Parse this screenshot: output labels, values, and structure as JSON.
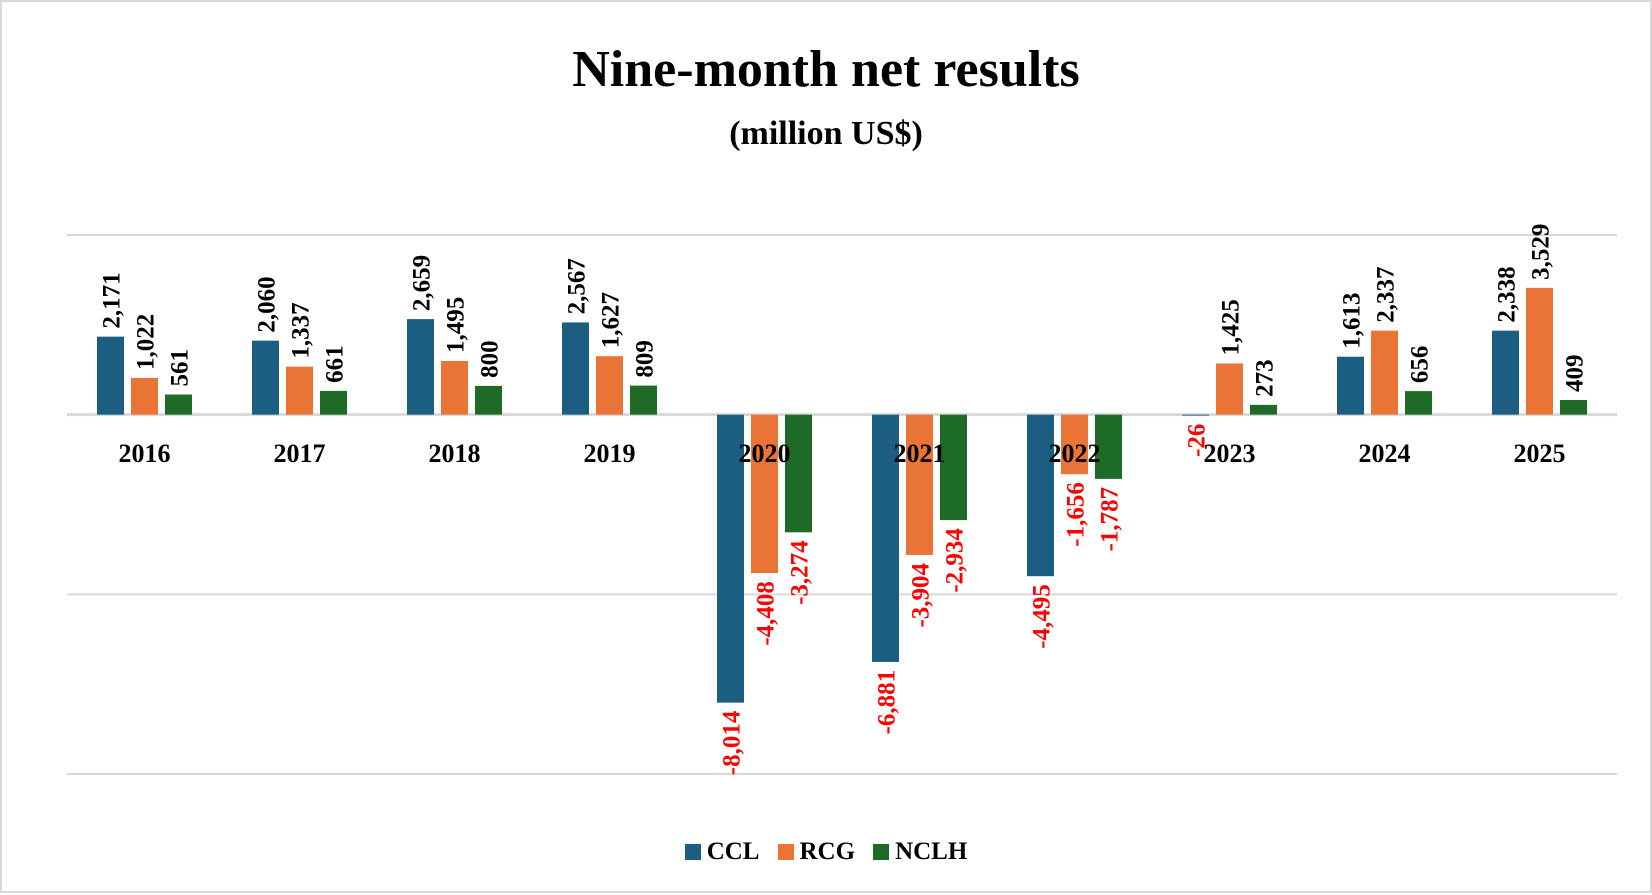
{
  "chart_data": {
    "type": "bar",
    "title": "Nine-month net results",
    "subtitle": "(million US$)",
    "categories": [
      "2016",
      "2017",
      "2018",
      "2019",
      "2020",
      "2021",
      "2022",
      "2023",
      "2024",
      "2025"
    ],
    "series": [
      {
        "name": "CCL",
        "color": "#1b5e82",
        "values": [
          2171,
          2060,
          2659,
          2567,
          -8014,
          -6881,
          -4495,
          -26,
          1613,
          2338
        ],
        "labels": [
          "2,171",
          "2,060",
          "2,659",
          "2,567",
          "-8,014",
          "-6,881",
          "-4,495",
          "-26",
          "1,613",
          "2,338"
        ]
      },
      {
        "name": "RCG",
        "color": "#e97435",
        "values": [
          1022,
          1337,
          1495,
          1627,
          -4408,
          -3904,
          -1656,
          1425,
          2337,
          3529
        ],
        "labels": [
          "1,022",
          "1,337",
          "1,495",
          "1,627",
          "-4,408",
          "-3,904",
          "-1,656",
          "1,425",
          "2,337",
          "3,529"
        ]
      },
      {
        "name": "NCLH",
        "color": "#1d6b26",
        "values": [
          561,
          661,
          800,
          809,
          -3274,
          -2934,
          -1787,
          273,
          656,
          409
        ],
        "labels": [
          "561",
          "661",
          "800",
          "809",
          "-3,274",
          "-2,934",
          "-1,787",
          "273",
          "656",
          "409"
        ]
      }
    ],
    "ylim": [
      -10000,
      5000
    ],
    "gridlines": [
      5000,
      0,
      -5000,
      -10000
    ],
    "grid": true,
    "y_axis_labels_shown": false,
    "positive_label_color": "#000000",
    "negative_label_color": "#ff0000",
    "legend": "bottom"
  }
}
